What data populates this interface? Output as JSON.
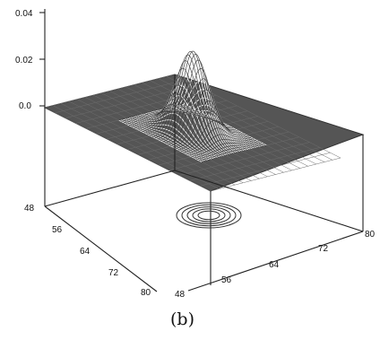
{
  "chart_data": {
    "type": "surface",
    "caption": "(b)",
    "z_ticks": [
      "0.04",
      "0.02",
      "0.0"
    ],
    "z_range": [
      0.0,
      0.04
    ],
    "y_ticks": [
      "48",
      "56",
      "64",
      "72",
      "80"
    ],
    "x_ticks": [
      "48",
      "56",
      "64",
      "72",
      "80"
    ],
    "x_range": [
      48,
      80
    ],
    "y_range": [
      48,
      80
    ],
    "peak": {
      "x": 64,
      "y": 64,
      "z": 0.035,
      "width": 2.5
    },
    "contour_projection": true,
    "colors": {
      "surface": "#555555",
      "mesh": "#ffffff",
      "lines": "#222222"
    }
  }
}
